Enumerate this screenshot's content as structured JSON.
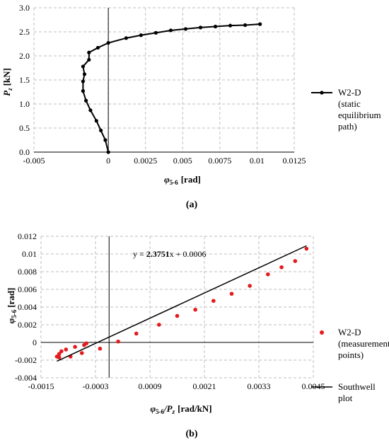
{
  "chart_data": [
    {
      "type": "line",
      "caption": "(a)",
      "ylabel": "P",
      "ylabel_sub": "z",
      "ylabel_unit": "[kN]",
      "xlabel": "φ",
      "xlabel_sub": "5-6",
      "xlabel_unit": "[rad]",
      "xlim": [
        -0.005,
        0.0125
      ],
      "ylim": [
        0,
        3.0
      ],
      "xticks": [
        "-0.005",
        "0",
        "0.0025",
        "0.005",
        "0.0075",
        "0.01",
        "0.0125"
      ],
      "yticks": [
        "0.0",
        "0.5",
        "1.0",
        "1.5",
        "2.0",
        "2.5",
        "3.0"
      ],
      "xtick_values": [
        -0.005,
        0,
        0.0025,
        0.005,
        0.0075,
        0.01,
        0.0125
      ],
      "ytick_values": [
        0,
        0.5,
        1.0,
        1.5,
        2.0,
        2.5,
        3.0
      ],
      "grid": true,
      "legend_position": "right",
      "series": [
        {
          "name": "W2-D (static equilibrium path)",
          "legend_lines": [
            "W2-D",
            "(static",
            "equilibrium",
            "path)"
          ],
          "x": [
            0.0,
            -0.0002,
            -0.0005,
            -0.0008,
            -0.0012,
            -0.0015,
            -0.0017,
            -0.0017,
            -0.0016,
            -0.0017,
            -0.0013,
            -0.0013,
            -0.0007,
            0.0,
            0.0012,
            0.0022,
            0.0032,
            0.0042,
            0.0052,
            0.0062,
            0.0072,
            0.0082,
            0.0092,
            0.0102
          ],
          "y": [
            0.0,
            0.25,
            0.45,
            0.65,
            0.87,
            1.07,
            1.27,
            1.47,
            1.62,
            1.78,
            1.92,
            2.07,
            2.17,
            2.27,
            2.37,
            2.43,
            2.48,
            2.53,
            2.56,
            2.59,
            2.61,
            2.63,
            2.64,
            2.66
          ]
        }
      ]
    },
    {
      "type": "scatter",
      "caption": "(b)",
      "ylabel": "φ",
      "ylabel_sub": "5-6",
      "ylabel_unit": "[rad]",
      "xlabel": "φ",
      "xlabel_sub": "5-6",
      "xlabel_mid": "/P",
      "xlabel_sub2": "z",
      "xlabel_unit": "[rad/kN]",
      "xlim": [
        -0.0015,
        0.0045
      ],
      "ylim": [
        -0.004,
        0.012
      ],
      "xticks": [
        "-0.0015",
        "-0.0003",
        "0.0009",
        "0.0021",
        "0.0033",
        "0.0045"
      ],
      "yticks": [
        "-0.004",
        "-0.002",
        "0",
        "0.002",
        "0.004",
        "0.006",
        "0.008",
        "0.01",
        "0.012"
      ],
      "xtick_values": [
        -0.0015,
        -0.0003,
        0.0009,
        0.0021,
        0.0033,
        0.0045
      ],
      "ytick_values": [
        -0.004,
        -0.002,
        0,
        0.002,
        0.004,
        0.006,
        0.008,
        0.01,
        0.012
      ],
      "grid": true,
      "legend_position": "right",
      "equation": {
        "prefix": "y = ",
        "slope": "2.3751",
        "suffix": "x + 0.0006"
      },
      "series": [
        {
          "name": "W2-D (measurement points)",
          "legend_lines": [
            "W2-D",
            "(measurement",
            "points)"
          ],
          "color": "#e41a1c",
          "x": [
            -0.00115,
            -0.0011,
            -0.00105,
            -0.0011,
            -0.00095,
            -0.00085,
            -0.00075,
            -0.0006,
            -0.00055,
            -0.0005,
            -0.0002,
            0.0002,
            0.0006,
            0.0011,
            0.0015,
            0.0019,
            0.0023,
            0.0027,
            0.0031,
            0.0035,
            0.0038,
            0.0041,
            0.00435
          ],
          "y": [
            -0.0016,
            -0.0013,
            -0.001,
            -0.0017,
            -0.0008,
            -0.0016,
            -0.0005,
            -0.0012,
            -0.0003,
            -0.0001,
            -0.0007,
            0.0001,
            0.001,
            0.002,
            0.003,
            0.0037,
            0.0047,
            0.0055,
            0.0064,
            0.0077,
            0.0085,
            0.0092,
            0.0106
          ]
        },
        {
          "name": "Southwell plot",
          "legend_lines": [
            "Southwell",
            "plot"
          ],
          "color": "#000000",
          "x": [
            -0.00115,
            0.00435
          ],
          "y": [
            -0.00213,
            0.01093
          ]
        }
      ]
    }
  ]
}
